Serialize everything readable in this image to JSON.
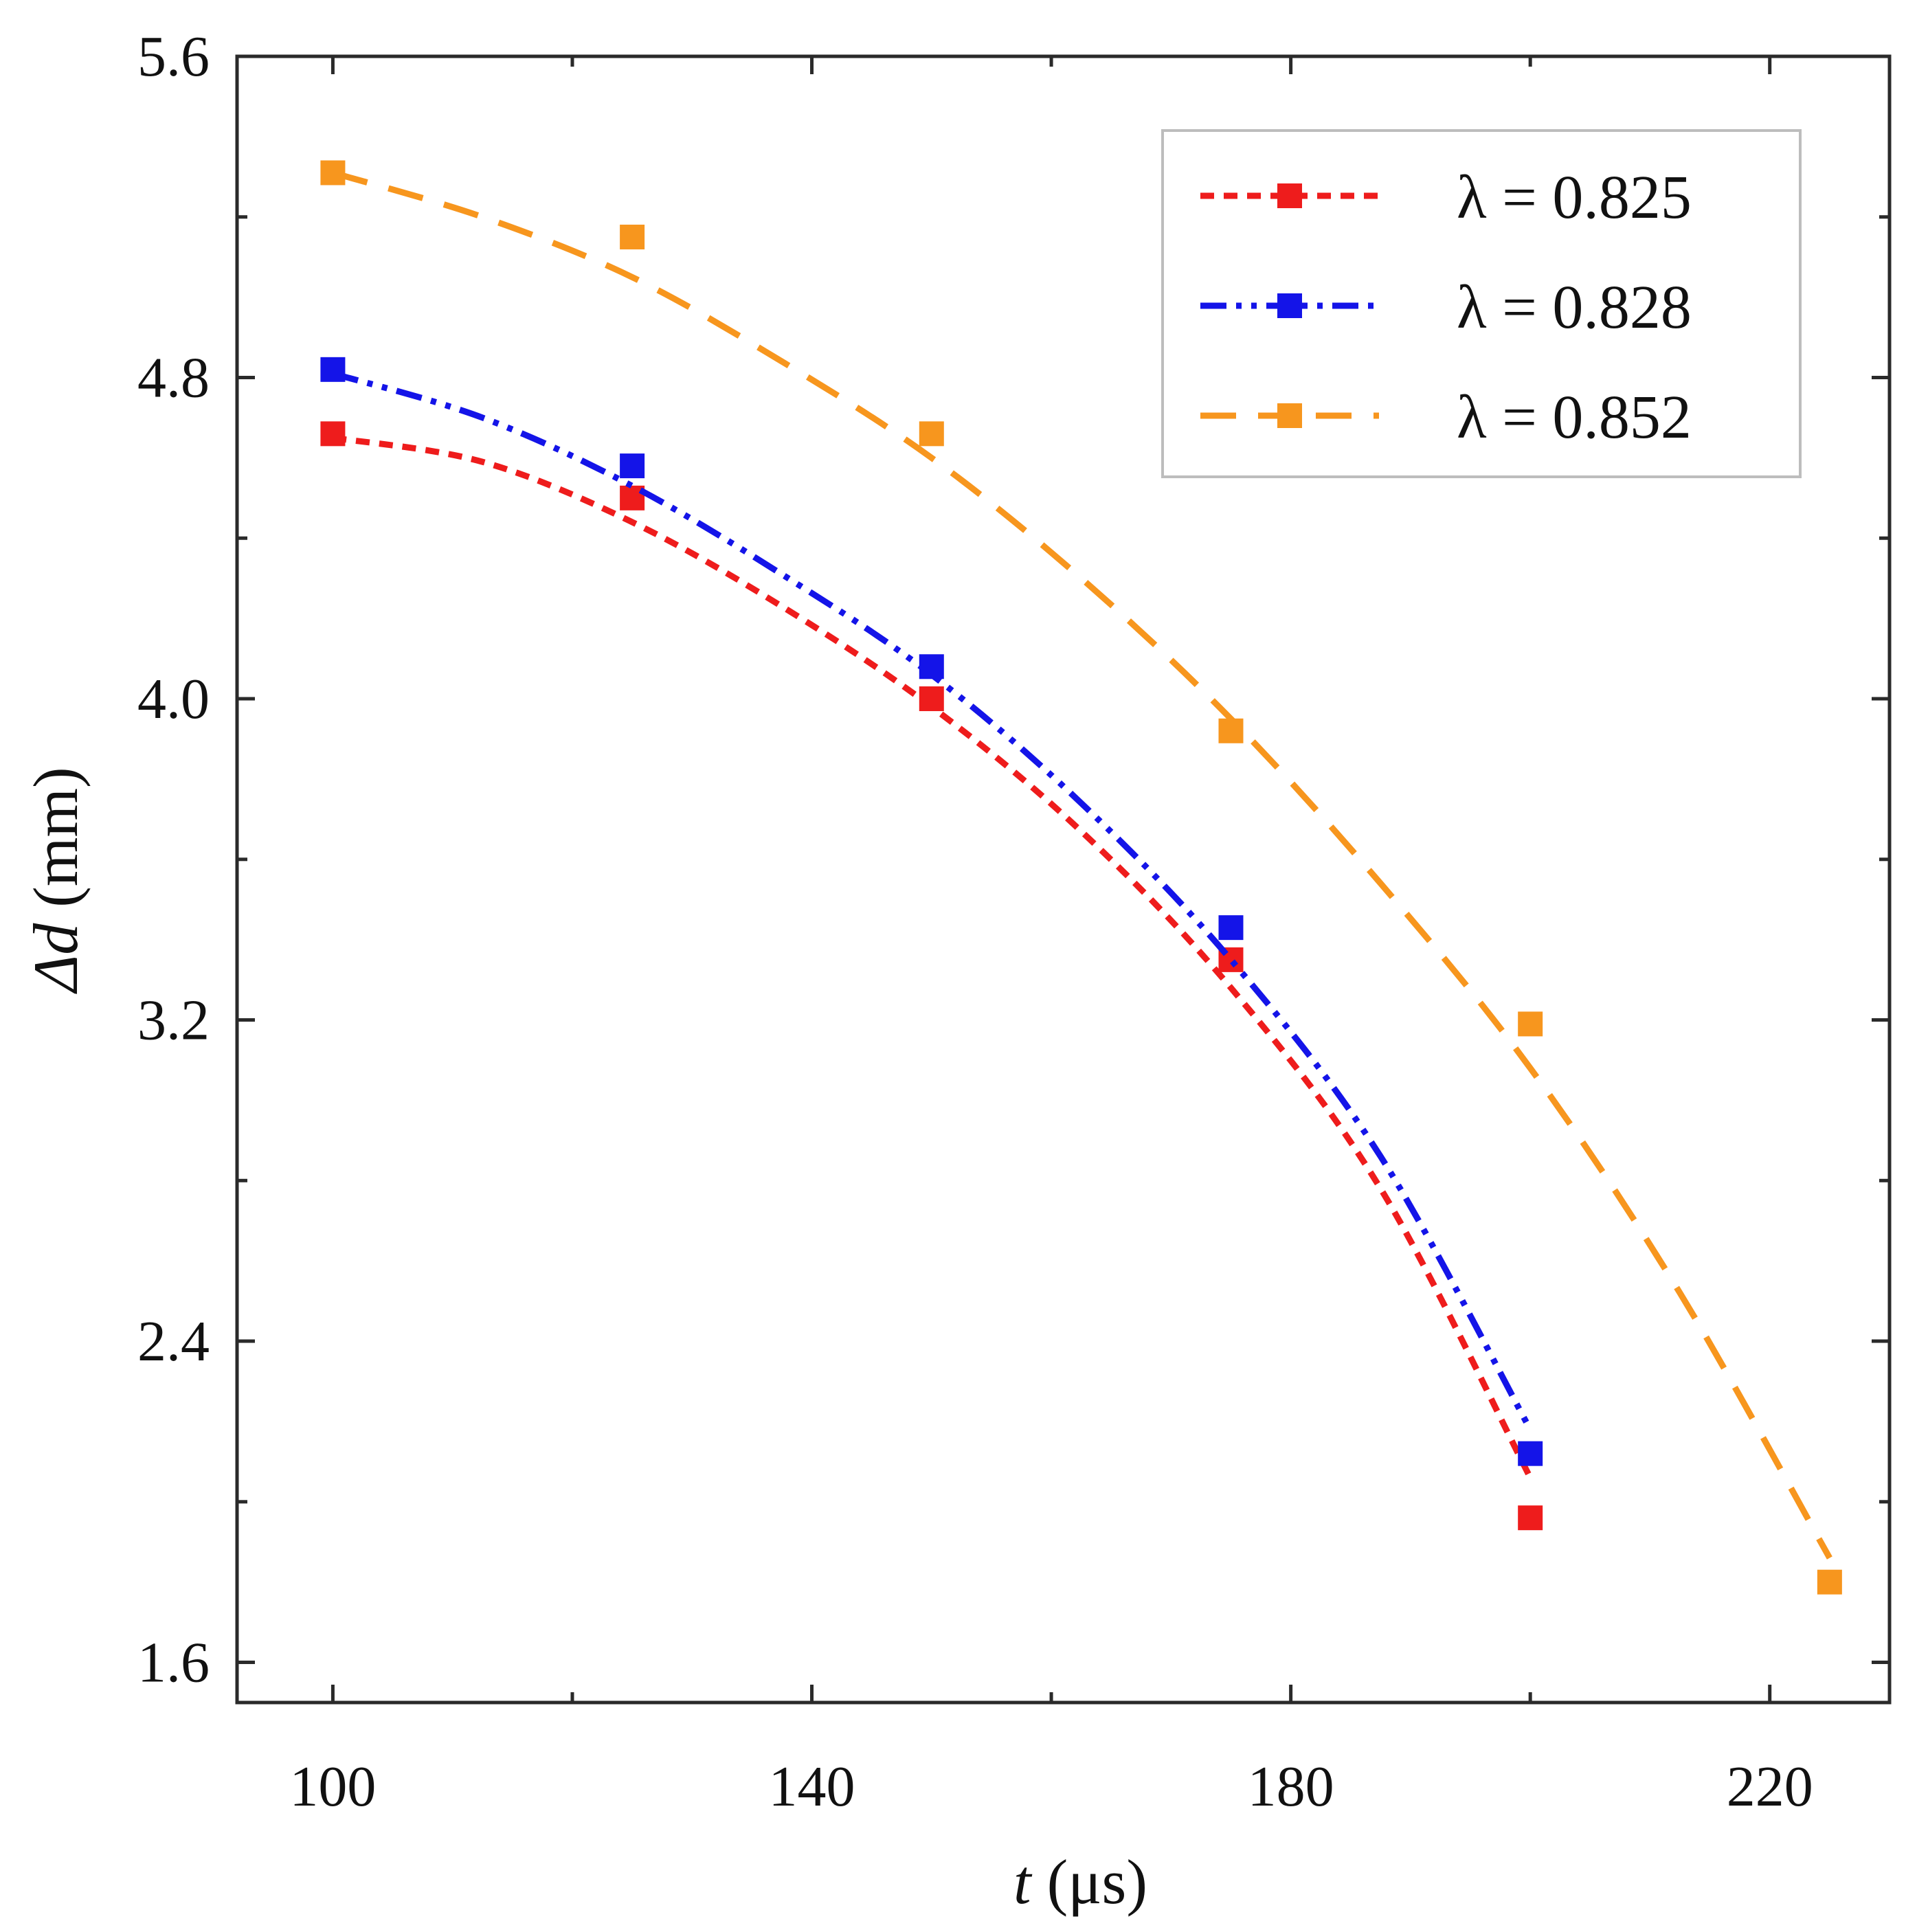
{
  "chart_data": {
    "type": "line",
    "title": "",
    "xlabel": {
      "var": "t",
      "unit": " (μs)"
    },
    "ylabel": {
      "var": "Δd",
      "unit": " (mm)"
    },
    "xlim": [
      92,
      230
    ],
    "ylim": [
      1.5,
      5.6
    ],
    "x_major_ticks": [
      100,
      140,
      180,
      220
    ],
    "x_tick_labels": [
      "100",
      "140",
      "180",
      "220"
    ],
    "x_minor_ticks": [
      120,
      160,
      200
    ],
    "y_major_ticks": [
      1.6,
      2.4,
      3.2,
      4.0,
      4.8,
      5.6
    ],
    "y_tick_labels": [
      "1.6",
      "2.4",
      "3.2",
      "4.0",
      "4.8",
      "5.6"
    ],
    "y_minor_ticks": [
      2.0,
      2.8,
      3.6,
      4.4,
      5.2
    ],
    "grid": false,
    "legend": {
      "position": "top-right"
    },
    "series": [
      {
        "name": "λ = 0.825",
        "color": "#ee1c1c",
        "dash": "short-dash",
        "marker": "square",
        "x": [
          100,
          125,
          150,
          175,
          200
        ],
        "y": [
          4.66,
          4.5,
          4.0,
          3.35,
          1.96
        ],
        "curve": [
          [
            100,
            4.65
          ],
          [
            112.5,
            4.59
          ],
          [
            125,
            4.44
          ],
          [
            137.5,
            4.23
          ],
          [
            150,
            3.98
          ],
          [
            162.5,
            3.67
          ],
          [
            175,
            3.28
          ],
          [
            187.5,
            2.78
          ],
          [
            200,
            2.06
          ]
        ]
      },
      {
        "name": "λ = 0.828",
        "color": "#1414e8",
        "dash": "dash-dot-dot",
        "marker": "square",
        "x": [
          100,
          125,
          150,
          175,
          200
        ],
        "y": [
          4.82,
          4.58,
          4.08,
          3.43,
          2.12
        ],
        "curve": [
          [
            100,
            4.81
          ],
          [
            112.5,
            4.7
          ],
          [
            125,
            4.53
          ],
          [
            137.5,
            4.31
          ],
          [
            150,
            4.06
          ],
          [
            162.5,
            3.74
          ],
          [
            175,
            3.35
          ],
          [
            187.5,
            2.86
          ],
          [
            200,
            2.18
          ]
        ]
      },
      {
        "name": "λ = 0.852",
        "color": "#f7961e",
        "dash": "long-dash",
        "marker": "square",
        "x": [
          100,
          125,
          150,
          175,
          200,
          225
        ],
        "y": [
          5.31,
          5.15,
          4.66,
          3.92,
          3.19,
          1.8
        ],
        "curve": [
          [
            100,
            5.31
          ],
          [
            112.5,
            5.2
          ],
          [
            125,
            5.05
          ],
          [
            137.5,
            4.84
          ],
          [
            150,
            4.6
          ],
          [
            162.5,
            4.3
          ],
          [
            175,
            3.95
          ],
          [
            187.5,
            3.54
          ],
          [
            200,
            3.08
          ],
          [
            212.5,
            2.52
          ],
          [
            225,
            1.86
          ]
        ]
      }
    ]
  }
}
